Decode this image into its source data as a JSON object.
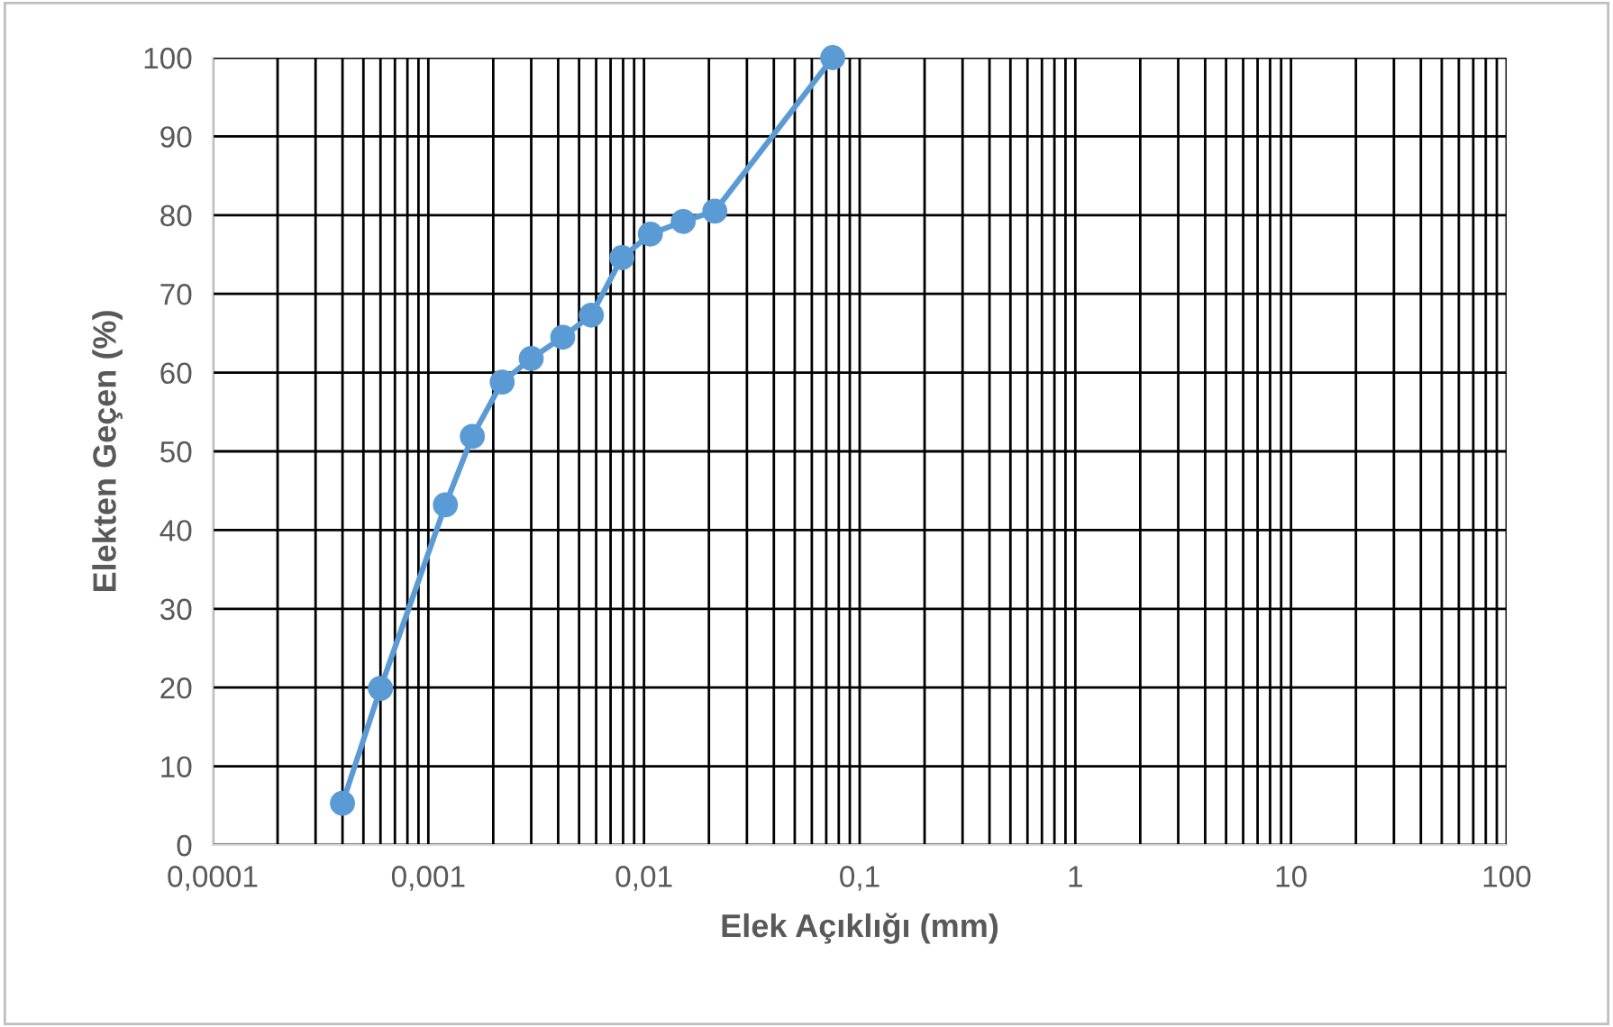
{
  "chart_data": {
    "type": "line",
    "xlabel": "Elek Açıklığı (mm)",
    "ylabel": "Elekten Geçen (%)",
    "log": "x",
    "grid": true,
    "marker": "circle",
    "line_style": "solid",
    "xlim": [
      0.0001,
      100
    ],
    "ylim": [
      0,
      100
    ],
    "xticks": [
      {
        "value": 0.0001,
        "label": "0,0001"
      },
      {
        "value": 0.0002,
        "label": null
      },
      {
        "value": 0.0003,
        "label": null
      },
      {
        "value": 0.0004,
        "label": null
      },
      {
        "value": 0.0005,
        "label": null
      },
      {
        "value": 0.0006,
        "label": null
      },
      {
        "value": 0.0007,
        "label": null
      },
      {
        "value": 0.0008,
        "label": null
      },
      {
        "value": 0.0009,
        "label": null
      },
      {
        "value": 0.001,
        "label": "0,001"
      },
      {
        "value": 0.002,
        "label": null
      },
      {
        "value": 0.003,
        "label": null
      },
      {
        "value": 0.004,
        "label": null
      },
      {
        "value": 0.005,
        "label": null
      },
      {
        "value": 0.006,
        "label": null
      },
      {
        "value": 0.007,
        "label": null
      },
      {
        "value": 0.008,
        "label": null
      },
      {
        "value": 0.009,
        "label": null
      },
      {
        "value": 0.01,
        "label": "0,01"
      },
      {
        "value": 0.02,
        "label": null
      },
      {
        "value": 0.03,
        "label": null
      },
      {
        "value": 0.04,
        "label": null
      },
      {
        "value": 0.05,
        "label": null
      },
      {
        "value": 0.06,
        "label": null
      },
      {
        "value": 0.07,
        "label": null
      },
      {
        "value": 0.08,
        "label": null
      },
      {
        "value": 0.09,
        "label": null
      },
      {
        "value": 0.1,
        "label": "0,1"
      },
      {
        "value": 0.2,
        "label": null
      },
      {
        "value": 0.3,
        "label": null
      },
      {
        "value": 0.4,
        "label": null
      },
      {
        "value": 0.5,
        "label": null
      },
      {
        "value": 0.6,
        "label": null
      },
      {
        "value": 0.7,
        "label": null
      },
      {
        "value": 0.8,
        "label": null
      },
      {
        "value": 0.9,
        "label": null
      },
      {
        "value": 1,
        "label": "1"
      },
      {
        "value": 2,
        "label": null
      },
      {
        "value": 3,
        "label": null
      },
      {
        "value": 4,
        "label": null
      },
      {
        "value": 5,
        "label": null
      },
      {
        "value": 6,
        "label": null
      },
      {
        "value": 7,
        "label": null
      },
      {
        "value": 8,
        "label": null
      },
      {
        "value": 9,
        "label": null
      },
      {
        "value": 10,
        "label": "10"
      },
      {
        "value": 20,
        "label": null
      },
      {
        "value": 30,
        "label": null
      },
      {
        "value": 40,
        "label": null
      },
      {
        "value": 50,
        "label": null
      },
      {
        "value": 60,
        "label": null
      },
      {
        "value": 70,
        "label": null
      },
      {
        "value": 80,
        "label": null
      },
      {
        "value": 90,
        "label": null
      },
      {
        "value": 100,
        "label": "100"
      }
    ],
    "yticks": [
      0,
      10,
      20,
      30,
      40,
      50,
      60,
      70,
      80,
      90,
      100
    ],
    "series": [
      {
        "color": "#5b9bd5",
        "x": [
          0.0004,
          0.0006,
          0.0012,
          0.0016,
          0.0022,
          0.003,
          0.0042,
          0.0057,
          0.0079,
          0.0107,
          0.0152,
          0.0213,
          0.075
        ],
        "values": [
          5.3,
          19.9,
          43.2,
          51.9,
          58.8,
          61.8,
          64.5,
          67.3,
          74.6,
          77.6,
          79.2,
          80.5,
          100
        ]
      }
    ]
  }
}
